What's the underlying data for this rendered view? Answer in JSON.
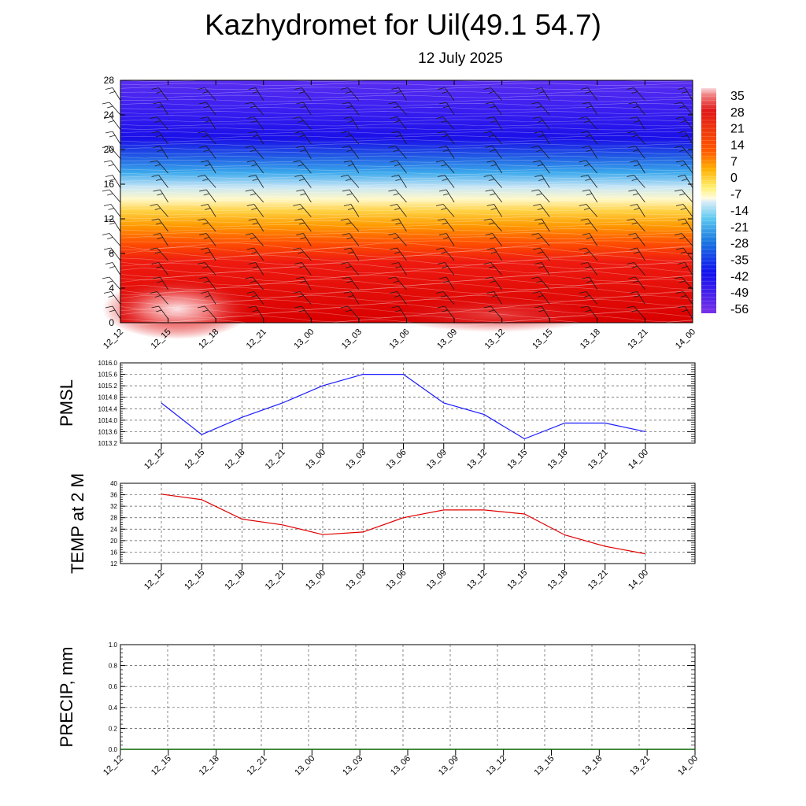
{
  "title": "Kazhydromet for Uil(49.1 54.7)",
  "subtitle": "12 July 2025",
  "time_labels": [
    "12_12",
    "12_15",
    "12_18",
    "12_21",
    "13_00",
    "13_03",
    "13_06",
    "13_09",
    "13_12",
    "13_15",
    "13_18",
    "13_21",
    "14_00"
  ],
  "colors": {
    "pmsl_line": "#1a1aff",
    "temp_line": "#e00000",
    "precip_line": "#006400",
    "grid": "#555555"
  },
  "chart_data": [
    {
      "type": "heatmap",
      "name": "vertical-temperature-profile",
      "title": "",
      "xlabel": "",
      "ylabel": "",
      "x": [
        "12_12",
        "12_15",
        "12_18",
        "12_21",
        "13_00",
        "13_03",
        "13_06",
        "13_09",
        "13_12",
        "13_15",
        "13_18",
        "13_21",
        "14_00"
      ],
      "ylim": [
        0,
        28
      ],
      "yticks": [
        0,
        4,
        8,
        12,
        16,
        20,
        24,
        28
      ],
      "levels": [
        0,
        4,
        8,
        12,
        14,
        16,
        20,
        24,
        28
      ],
      "values": [
        [
          28,
          24,
          18,
          16,
          18,
          19,
          20,
          21,
          22,
          21,
          19,
          18,
          18
        ],
        [
          17,
          16,
          15,
          14,
          15,
          16,
          17,
          17,
          17,
          17,
          16,
          15,
          15
        ],
        [
          10,
          10,
          10,
          10,
          10,
          10,
          10,
          10,
          10,
          10,
          10,
          10,
          10
        ],
        [
          -7,
          -7,
          -7,
          -7,
          -7,
          -7,
          -7,
          -7,
          -7,
          -7,
          -7,
          -7,
          -7
        ],
        [
          -14,
          -14,
          -14,
          -14,
          -14,
          -14,
          -14,
          -14,
          -14,
          -14,
          -14,
          -14,
          -14
        ],
        [
          -24,
          -24,
          -24,
          -24,
          -24,
          -24,
          -24,
          -24,
          -24,
          -24,
          -24,
          -24,
          -24
        ],
        [
          -44,
          -44,
          -44,
          -44,
          -44,
          -44,
          -44,
          -44,
          -44,
          -44,
          -44,
          -44,
          -44
        ],
        [
          -55,
          -55,
          -55,
          -55,
          -55,
          -55,
          -55,
          -55,
          -55,
          -55,
          -55,
          -55,
          -55
        ],
        [
          -55,
          -55,
          -55,
          -55,
          -55,
          -55,
          -55,
          -55,
          -55,
          -55,
          -55,
          -55,
          -55
        ]
      ],
      "colorbar": {
        "labels": [
          "35",
          "28",
          "21",
          "14",
          "7",
          "0",
          "-7",
          "-14",
          "-21",
          "-28",
          "-35",
          "-42",
          "-49",
          "-56"
        ],
        "range": [
          -63,
          38
        ]
      },
      "wind_barbs": true
    },
    {
      "type": "line",
      "name": "pmsl",
      "ylabel": "PMSL",
      "ylim": [
        1013.2,
        1016.0
      ],
      "yticks": [
        "1016.0",
        "1015.6",
        "1015.2",
        "1014.8",
        "1014.4",
        "1014.0",
        "1013.6",
        "1013.2"
      ],
      "x": [
        "12_12",
        "12_15",
        "12_18",
        "12_21",
        "13_00",
        "13_03",
        "13_06",
        "13_09",
        "13_12",
        "13_15",
        "13_18",
        "13_21",
        "14_00"
      ],
      "values": [
        1014.6,
        1013.5,
        1014.1,
        1014.6,
        1015.2,
        1015.6,
        1015.6,
        1014.6,
        1014.2,
        1013.35,
        1013.9,
        1013.9,
        1013.6
      ],
      "grid": true
    },
    {
      "type": "line",
      "name": "temp-2m",
      "ylabel": "TEMP at 2 M",
      "ylim": [
        12,
        40
      ],
      "yticks": [
        "40",
        "36",
        "32",
        "28",
        "24",
        "20",
        "16",
        "12"
      ],
      "x": [
        "12_12",
        "12_15",
        "12_18",
        "12_21",
        "13_00",
        "13_03",
        "13_06",
        "13_09",
        "13_12",
        "13_15",
        "13_18",
        "13_21",
        "14_00"
      ],
      "values": [
        36.2,
        34.3,
        27.5,
        25.5,
        22.1,
        23.0,
        28.0,
        30.7,
        30.7,
        29.3,
        22.0,
        18.0,
        15.4
      ],
      "grid": true
    },
    {
      "type": "line",
      "name": "precip",
      "ylabel": "PRECIP, mm",
      "ylim": [
        0.0,
        1.0
      ],
      "yticks": [
        "1.0",
        "0.8",
        "0.6",
        "0.4",
        "0.2",
        "0.0"
      ],
      "x": [
        "12_12",
        "12_15",
        "12_18",
        "12_21",
        "13_00",
        "13_03",
        "13_06",
        "13_09",
        "13_12",
        "13_15",
        "13_18",
        "13_21",
        "14_00"
      ],
      "values": [
        0,
        0,
        0,
        0,
        0,
        0,
        0,
        0,
        0,
        0,
        0,
        0,
        0
      ],
      "grid": true
    }
  ]
}
